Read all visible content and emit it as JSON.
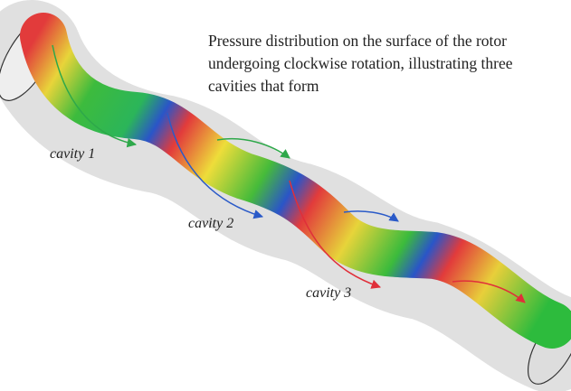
{
  "caption_lines": [
    "Pressure distribution on the surface of the rotor",
    "undergoing clockwise rotation, illustrating three",
    "cavities that form"
  ],
  "labels": [
    "cavity 1",
    "cavity 2",
    "cavity 3"
  ]
}
